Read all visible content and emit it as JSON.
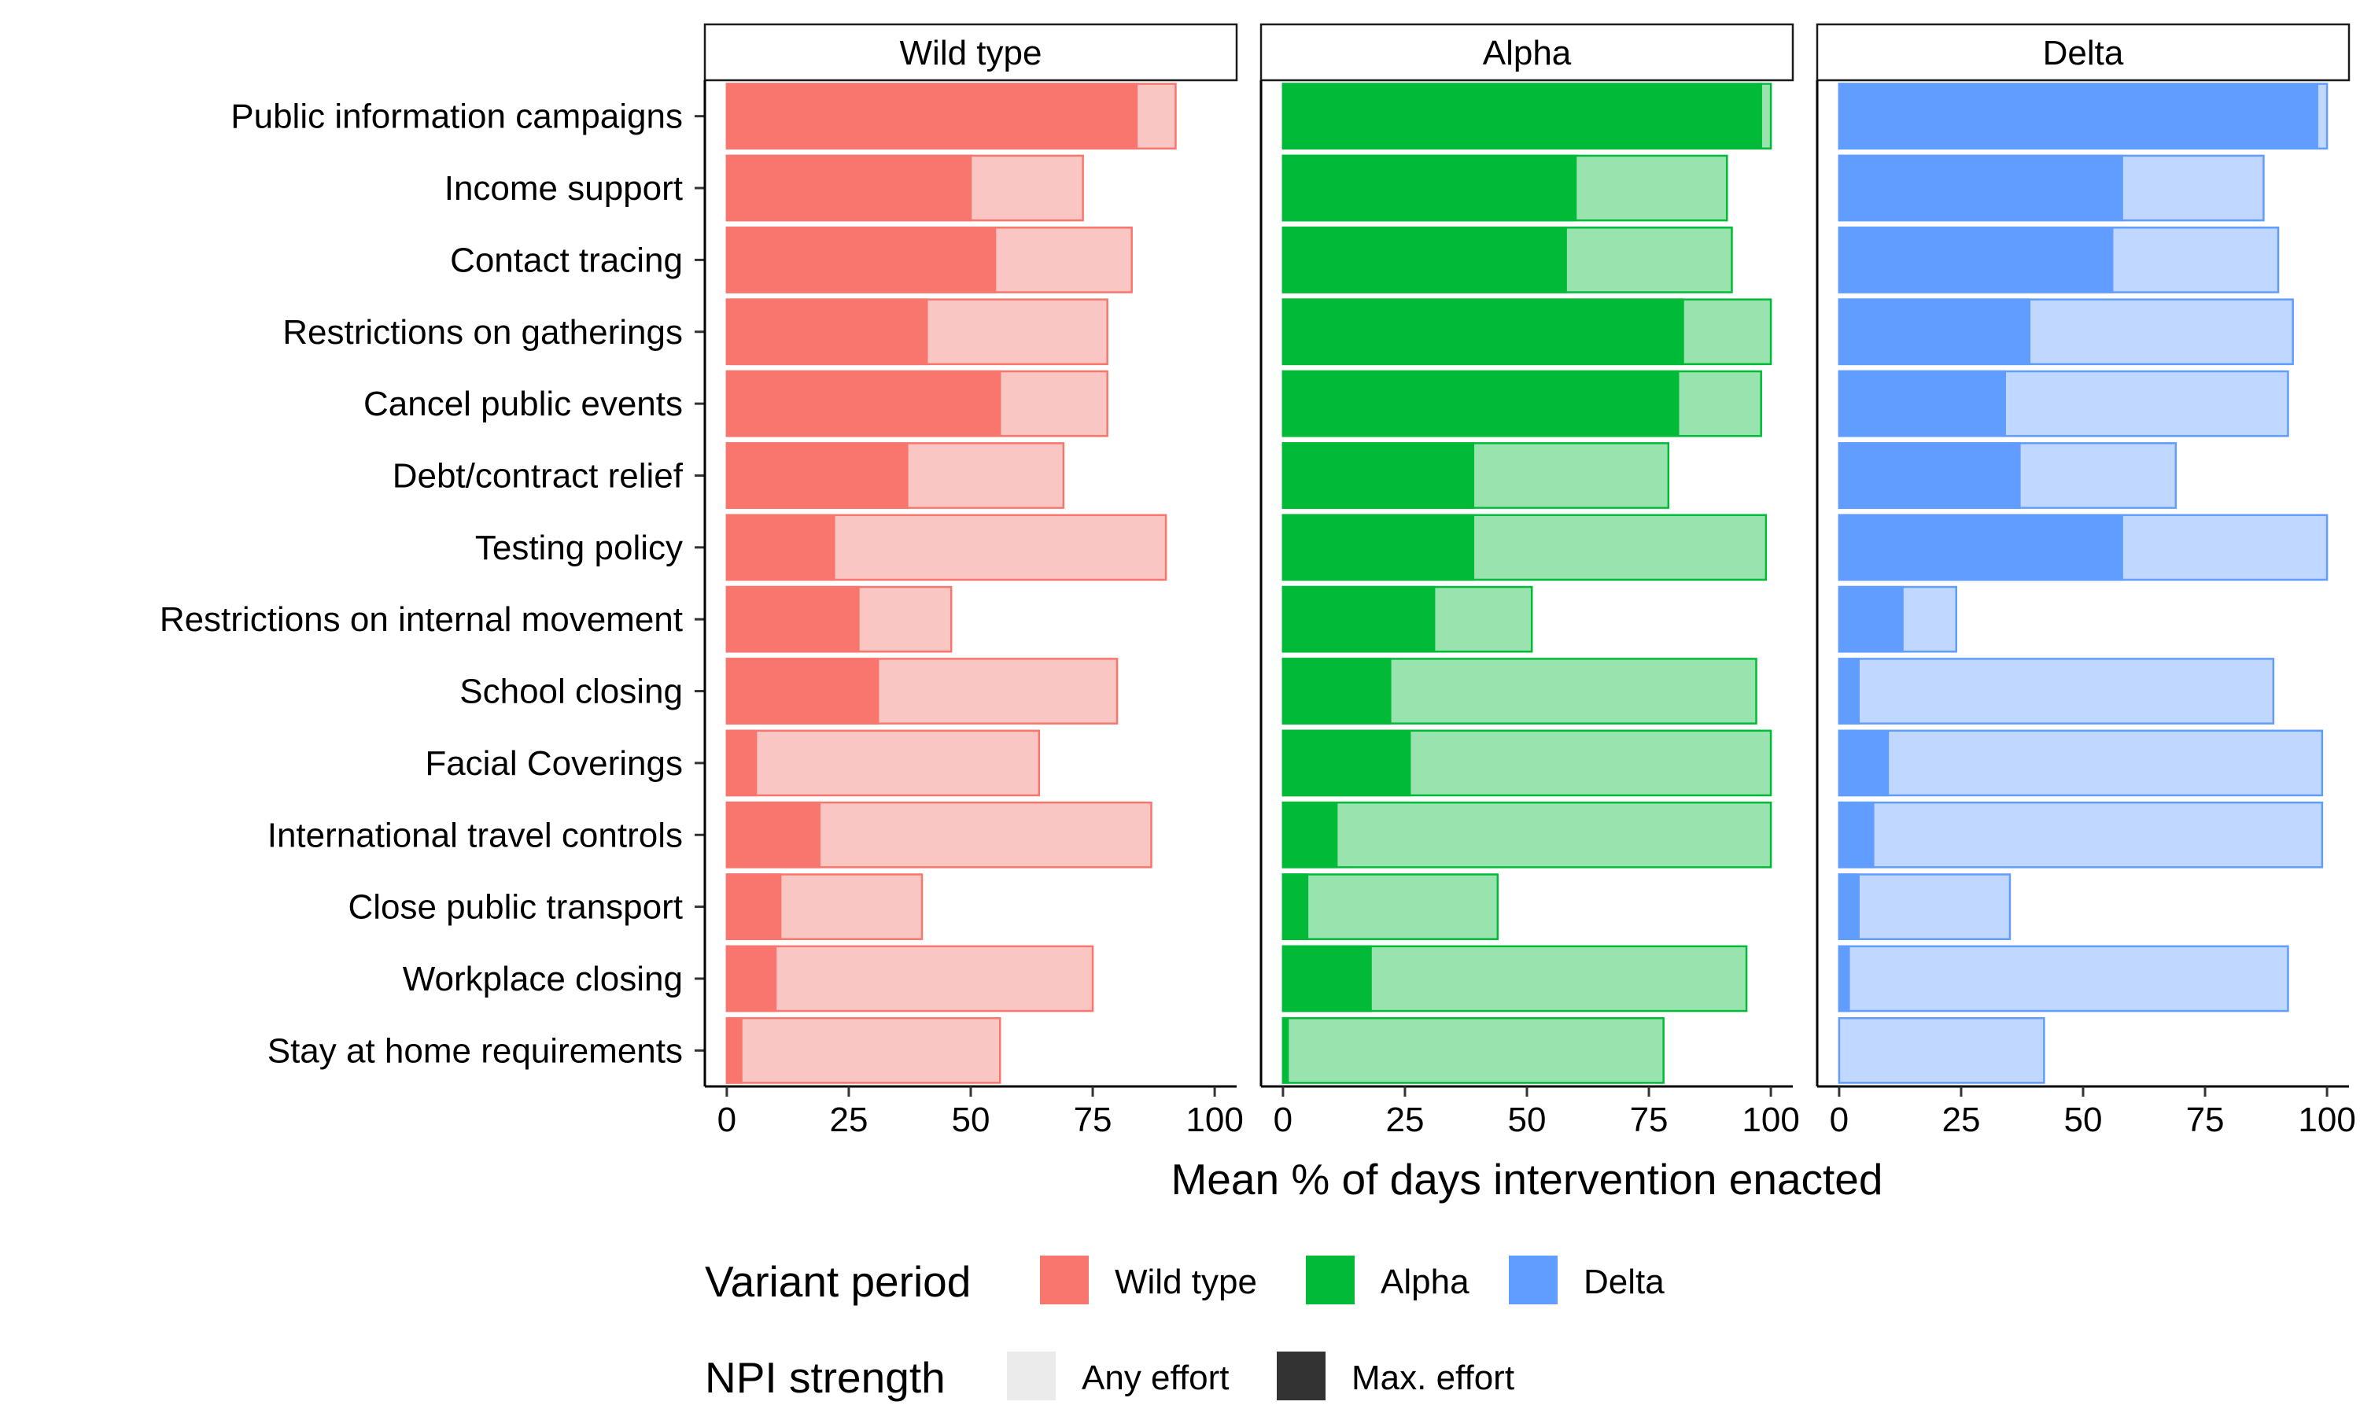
{
  "chart_data": {
    "type": "bar",
    "orientation": "horizontal",
    "layout": "faceted",
    "xlabel": "Mean % of days intervention enacted",
    "ylabel": "",
    "xlim": [
      0,
      100
    ],
    "x_ticks": [
      "0",
      "25",
      "50",
      "75",
      "100"
    ],
    "grid": false,
    "legend_position": "bottom",
    "categories": [
      "Public information campaigns",
      "Income support",
      "Contact tracing",
      "Restrictions on gatherings",
      "Cancel public events",
      "Debt/contract relief",
      "Testing policy",
      "Restrictions on internal movement",
      "School closing",
      "Facial Coverings",
      "International travel controls",
      "Close public transport",
      "Workplace closing",
      "Stay at home requirements"
    ],
    "facets": [
      {
        "name": "Wild type",
        "color": "#F8766D",
        "light_color": "#FAC6C3",
        "any_effort": [
          92,
          73,
          83,
          78,
          78,
          69,
          90,
          46,
          80,
          64,
          87,
          40,
          75,
          56
        ],
        "max_effort": [
          84,
          50,
          55,
          41,
          56,
          37,
          22,
          27,
          31,
          6,
          19,
          11,
          10,
          3
        ]
      },
      {
        "name": "Alpha",
        "color": "#00BA38",
        "light_color": "#99E3AF",
        "any_effort": [
          100,
          91,
          92,
          100,
          98,
          79,
          99,
          51,
          97,
          100,
          100,
          44,
          95,
          78
        ],
        "max_effort": [
          98,
          60,
          58,
          82,
          81,
          39,
          39,
          31,
          22,
          26,
          11,
          5,
          18,
          1
        ]
      },
      {
        "name": "Delta",
        "color": "#619CFF",
        "light_color": "#C0D7FF",
        "any_effort": [
          100,
          87,
          90,
          93,
          92,
          69,
          100,
          24,
          89,
          99,
          99,
          35,
          92,
          42
        ],
        "max_effort": [
          98,
          58,
          56,
          39,
          34,
          37,
          58,
          13,
          4,
          10,
          7,
          4,
          2,
          0
        ]
      }
    ],
    "legend": {
      "variant_title": "Variant period",
      "variant_items": [
        {
          "label": "Wild type",
          "color": "#F8766D"
        },
        {
          "label": "Alpha",
          "color": "#00BA38"
        },
        {
          "label": "Delta",
          "color": "#619CFF"
        }
      ],
      "strength_title": "NPI strength",
      "strength_items": [
        {
          "label": "Any effort",
          "color": "#EBEBEB"
        },
        {
          "label": "Max. effort",
          "color": "#333333"
        }
      ]
    }
  }
}
